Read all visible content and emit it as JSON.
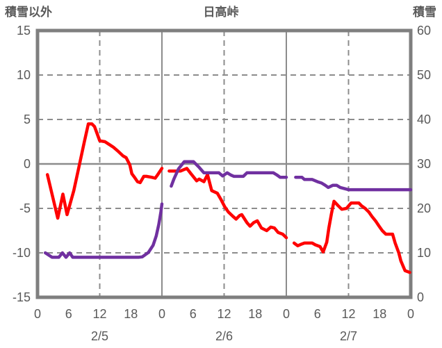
{
  "header": {
    "left_axis_title": "積雪以外",
    "chart_title": "日高峠",
    "right_axis_title": "積雪"
  },
  "colors": {
    "background": "#ffffff",
    "border": "#7f7f7f",
    "gridline": "#8c8c8c",
    "text": "#595959",
    "series_red": "#ff0000",
    "series_purple": "#7030a0"
  },
  "chart_data": {
    "type": "line",
    "title": "日高峠",
    "left_axis": {
      "label": "積雪以外",
      "min": -15,
      "max": 15,
      "ticks": [
        15,
        10,
        5,
        0,
        -5,
        -10,
        -15
      ]
    },
    "right_axis": {
      "label": "積雪",
      "min": 0,
      "max": 60,
      "ticks": [
        60,
        50,
        40,
        30,
        20,
        10,
        0
      ]
    },
    "x_axis": {
      "min_hour": 0,
      "max_hour": 72,
      "tick_step": 6,
      "tick_labels": [
        "0",
        "6",
        "12",
        "18",
        "0",
        "6",
        "12",
        "18",
        "0",
        "6",
        "12",
        "18",
        "0"
      ],
      "day_labels": [
        "2/5",
        "2/6",
        "2/7"
      ],
      "day_label_center_hours": [
        12,
        36,
        60
      ],
      "solid_vertical_hours": [
        24,
        48
      ],
      "dashed_vertical_hours": [
        12,
        36,
        60
      ],
      "solid_horizontal_left_values": [
        0
      ],
      "dashed_horizontal_left_values": [
        10,
        5,
        -5,
        -10
      ]
    },
    "series": [
      {
        "name": "積雪以外",
        "axis": "left",
        "color": "#ff0000",
        "segments": [
          [
            [
              1.9,
              -1.2
            ],
            [
              3,
              -3.9
            ],
            [
              3.9,
              -6.1
            ],
            [
              4.9,
              -3.4
            ],
            [
              5.7,
              -5.7
            ],
            [
              7,
              -3.0
            ],
            [
              8,
              -0.3
            ],
            [
              9,
              2.4
            ],
            [
              9.8,
              4.5
            ],
            [
              10.5,
              4.5
            ],
            [
              11,
              4.2
            ],
            [
              12,
              2.6
            ],
            [
              13,
              2.5
            ],
            [
              13.8,
              2.2
            ],
            [
              14.6,
              1.9
            ],
            [
              15.6,
              1.4
            ],
            [
              16.5,
              0.9
            ],
            [
              17.1,
              0.7
            ],
            [
              17.8,
              -0.1
            ],
            [
              18.2,
              -1.1
            ],
            [
              18.7,
              -1.5
            ],
            [
              19.3,
              -2.0
            ],
            [
              19.8,
              -2.1
            ],
            [
              20.5,
              -1.4
            ],
            [
              21,
              -1.4
            ],
            [
              22,
              -1.5
            ],
            [
              22.7,
              -1.6
            ],
            [
              23.2,
              -1.2
            ],
            [
              24,
              -0.5
            ]
          ],
          [
            [
              25.4,
              -0.8
            ],
            [
              26.5,
              -0.8
            ],
            [
              27.6,
              -0.8
            ],
            [
              28.8,
              -0.5
            ],
            [
              29.6,
              -1.1
            ],
            [
              30.7,
              -1.9
            ],
            [
              31.2,
              -1.7
            ],
            [
              32.1,
              -2.0
            ],
            [
              32.8,
              -1.2
            ],
            [
              33.6,
              -3.0
            ],
            [
              34.7,
              -3.3
            ],
            [
              35.4,
              -4.0
            ],
            [
              36.1,
              -4.8
            ],
            [
              36.8,
              -5.4
            ],
            [
              37.7,
              -5.9
            ],
            [
              38.3,
              -6.2
            ],
            [
              39,
              -5.8
            ],
            [
              39.4,
              -5.7
            ],
            [
              40.4,
              -6.6
            ],
            [
              41,
              -7.0
            ],
            [
              41.7,
              -6.6
            ],
            [
              42.4,
              -6.4
            ],
            [
              43.2,
              -7.2
            ],
            [
              44.2,
              -7.5
            ],
            [
              45,
              -7.1
            ],
            [
              45.7,
              -7.2
            ],
            [
              46.4,
              -7.7
            ],
            [
              47.3,
              -7.9
            ],
            [
              48,
              -8.3
            ]
          ],
          [
            [
              49.5,
              -8.9
            ],
            [
              50.2,
              -9.2
            ],
            [
              51,
              -9.0
            ],
            [
              51.5,
              -8.9
            ],
            [
              53,
              -8.9
            ],
            [
              53.6,
              -9.1
            ],
            [
              54.5,
              -9.3
            ],
            [
              55.1,
              -9.9
            ],
            [
              55.8,
              -8.8
            ],
            [
              56.2,
              -7.2
            ],
            [
              56.7,
              -5.6
            ],
            [
              57.2,
              -4.2
            ],
            [
              58,
              -4.7
            ],
            [
              58.7,
              -5.1
            ],
            [
              59.6,
              -5.0
            ],
            [
              60.5,
              -4.4
            ],
            [
              62,
              -4.4
            ],
            [
              62.5,
              -4.7
            ],
            [
              63.2,
              -5.0
            ],
            [
              63.9,
              -5.4
            ],
            [
              64.5,
              -5.9
            ],
            [
              65.2,
              -6.4
            ],
            [
              65.9,
              -7.0
            ],
            [
              66.5,
              -7.5
            ],
            [
              67.2,
              -7.9
            ],
            [
              68.5,
              -7.9
            ],
            [
              69,
              -8.9
            ],
            [
              69.7,
              -10.0
            ],
            [
              70.1,
              -10.9
            ],
            [
              70.6,
              -11.6
            ],
            [
              70.9,
              -12.0
            ],
            [
              71.8,
              -12.2
            ]
          ]
        ]
      },
      {
        "name": "積雪",
        "axis": "right",
        "color": "#7030a0",
        "segments": [
          [
            [
              1.5,
              10
            ],
            [
              2.8,
              9
            ],
            [
              4.1,
              9
            ],
            [
              4.8,
              10
            ],
            [
              5.5,
              9
            ],
            [
              6.2,
              10
            ],
            [
              6.8,
              9
            ],
            [
              19.5,
              9
            ],
            [
              20.2,
              9.1
            ],
            [
              21.4,
              10.1
            ],
            [
              22.3,
              11.7
            ],
            [
              22.9,
              13.8
            ],
            [
              23.4,
              16.4
            ],
            [
              23.8,
              19.2
            ],
            [
              24,
              21
            ]
          ],
          [
            [
              25.8,
              25
            ],
            [
              26.3,
              26.6
            ],
            [
              27.2,
              28.9
            ],
            [
              28.3,
              30.5
            ],
            [
              30.1,
              30.5
            ],
            [
              31.2,
              29.2
            ],
            [
              32.1,
              28
            ],
            [
              35,
              28
            ],
            [
              35.7,
              27.3
            ],
            [
              36.6,
              28
            ],
            [
              37.3,
              27.5
            ],
            [
              37.9,
              27.2
            ],
            [
              39.7,
              27.2
            ],
            [
              40.4,
              28
            ],
            [
              45.5,
              28
            ],
            [
              46.2,
              27.5
            ],
            [
              46.8,
              27
            ],
            [
              48,
              27
            ]
          ],
          [
            [
              49.8,
              27
            ],
            [
              51,
              27
            ],
            [
              51.5,
              26.5
            ],
            [
              53,
              26.5
            ],
            [
              54,
              26
            ],
            [
              54.8,
              25.7
            ],
            [
              55.5,
              25.2
            ],
            [
              56.1,
              24.7
            ],
            [
              57,
              25.2
            ],
            [
              57.7,
              25.2
            ],
            [
              58.4,
              24.7
            ],
            [
              60,
              24.2
            ],
            [
              72,
              24.2
            ]
          ]
        ]
      }
    ]
  }
}
